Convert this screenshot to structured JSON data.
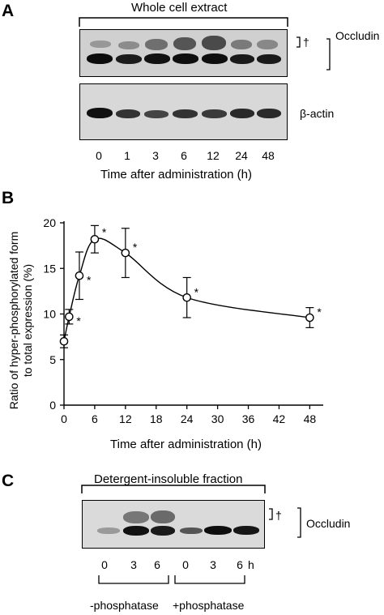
{
  "panel_a": {
    "letter": "A",
    "header": "Whole cell extract",
    "dagger": "†",
    "occludin_label": "Occludin",
    "actin_label": "β-actin",
    "lanes": [
      "0",
      "1",
      "3",
      "6",
      "12",
      "24",
      "48"
    ],
    "xlabel": "Time after administration (h)"
  },
  "panel_b": {
    "letter": "B"
  },
  "chart_data": {
    "type": "line",
    "title": "",
    "xlabel": "Time after administration (h)",
    "ylabel_line1": "Ratio of hyper-phosphorylated form",
    "ylabel_line2": "to total expression (%)",
    "xlim": [
      0,
      50
    ],
    "ylim": [
      0,
      20
    ],
    "xticks": [
      0,
      6,
      12,
      18,
      24,
      30,
      36,
      42,
      48
    ],
    "yticks": [
      0,
      5,
      10,
      15,
      20
    ],
    "series": [
      {
        "x": [
          0,
          1,
          3,
          6,
          12,
          24,
          48
        ],
        "y": [
          7.0,
          9.7,
          14.2,
          18.2,
          16.7,
          11.8,
          9.6
        ],
        "error": [
          0.7,
          0.8,
          2.6,
          1.5,
          2.7,
          2.2,
          1.1
        ],
        "significance": [
          "",
          "*",
          "*",
          "*",
          "*",
          "*",
          "*"
        ]
      }
    ],
    "grid": false,
    "legend": "none"
  },
  "panel_c": {
    "letter": "C",
    "header": "Detergent-insoluble fraction",
    "dagger": "†",
    "occludin_label": "Occludin",
    "lanes": [
      "0",
      "3",
      "6",
      "0",
      "3",
      "6"
    ],
    "unit": "h",
    "group_minus": "-phosphatase",
    "group_plus": "+phosphatase"
  }
}
